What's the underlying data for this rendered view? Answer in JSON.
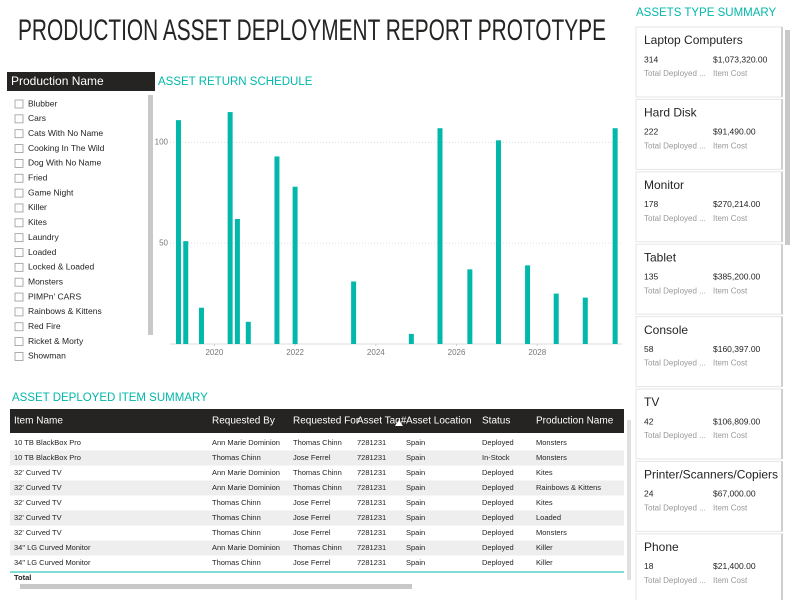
{
  "header": {
    "title": "PRODUCTION ASSET DEPLOYMENT REPORT PROTOTYPE"
  },
  "slicer": {
    "title": "Production Name",
    "items": [
      "Blubber",
      "Cars",
      "Cats With No Name",
      "Cooking In The Wild",
      "Dog With No Name",
      "Fried",
      "Game Night",
      "Killer",
      "Kites",
      "Laundry",
      "Loaded",
      "Locked & Loaded",
      "Monsters",
      "PIMPn' CARS",
      "Rainbows & Kittens",
      "Red Fire",
      "Ricket & Morty",
      "Showman"
    ]
  },
  "chart_data": {
    "type": "bar",
    "title": "ASSET RETURN SCHEDULE",
    "color": "#01b8aa",
    "x": [
      2019.11,
      2019.29,
      2019.68,
      2020.39,
      2020.57,
      2020.84,
      2021.55,
      2022.0,
      2023.45,
      2024.88,
      2025.59,
      2026.33,
      2027.04,
      2027.76,
      2028.47,
      2029.19,
      2029.93
    ],
    "values": [
      111,
      51,
      18,
      115,
      62,
      11,
      93,
      78,
      31,
      5,
      107,
      37,
      101,
      39,
      25,
      23,
      107
    ],
    "xlim": [
      2018.9,
      2030.1
    ],
    "xticks": [
      2020,
      2022,
      2024,
      2026,
      2028
    ],
    "ylim": [
      0,
      120
    ],
    "yticks": [
      50,
      100
    ],
    "grid": true
  },
  "table": {
    "title": "ASSET DEPLOYED ITEM SUMMARY",
    "columns": [
      "Item Name",
      "Requested By",
      "Requested For",
      "Asset Tag#",
      "Asset Location",
      "Status",
      "Production Name"
    ],
    "rows": [
      [
        "10 TB BlackBox Pro",
        "Ann Marie Dominion",
        "Thomas Chinn",
        "7281231",
        "Spain",
        "Deployed",
        "Monsters"
      ],
      [
        "10 TB BlackBox Pro",
        "Thomas Chinn",
        "Jose Ferrel",
        "7281231",
        "Spain",
        "In-Stock",
        "Monsters"
      ],
      [
        "32' Curved TV",
        "Ann Marie Dominion",
        "Thomas Chinn",
        "7281231",
        "Spain",
        "Deployed",
        "Kites"
      ],
      [
        "32' Curved TV",
        "Ann Marie Dominion",
        "Thomas Chinn",
        "7281231",
        "Spain",
        "Deployed",
        "Rainbows & Kittens"
      ],
      [
        "32' Curved TV",
        "Thomas Chinn",
        "Jose Ferrel",
        "7281231",
        "Spain",
        "Deployed",
        "Kites"
      ],
      [
        "32' Curved TV",
        "Thomas Chinn",
        "Jose Ferrel",
        "7281231",
        "Spain",
        "Deployed",
        "Loaded"
      ],
      [
        "32' Curved TV",
        "Thomas Chinn",
        "Jose Ferrel",
        "7281231",
        "Spain",
        "Deployed",
        "Monsters"
      ],
      [
        "34\" LG Curved Monitor",
        "Ann Marie Dominion",
        "Thomas Chinn",
        "7281231",
        "Spain",
        "Deployed",
        "Killer"
      ],
      [
        "34\" LG Curved Monitor",
        "Thomas Chinn",
        "Jose Ferrel",
        "7281231",
        "Spain",
        "Deployed",
        "Killer"
      ]
    ],
    "total_label": "Total"
  },
  "cards": {
    "title": "ASSETS TYPE SUMMARY",
    "count_label": "Total Deployed ...",
    "cost_label": "Item Cost",
    "items": [
      {
        "name": "Laptop Computers",
        "count": 314,
        "cost": "$1,073,320.00"
      },
      {
        "name": "Hard Disk",
        "count": 222,
        "cost": "$91,490.00"
      },
      {
        "name": "Monitor",
        "count": 178,
        "cost": "$270,214.00"
      },
      {
        "name": "Tablet",
        "count": 135,
        "cost": "$385,200.00"
      },
      {
        "name": "Console",
        "count": 58,
        "cost": "$160,397.00"
      },
      {
        "name": "TV",
        "count": 42,
        "cost": "$106,809.00"
      },
      {
        "name": "Printer/Scanners/Copiers",
        "count": 24,
        "cost": "$67,000.00"
      },
      {
        "name": "Phone",
        "count": 18,
        "cost": "$21,400.00"
      }
    ]
  }
}
